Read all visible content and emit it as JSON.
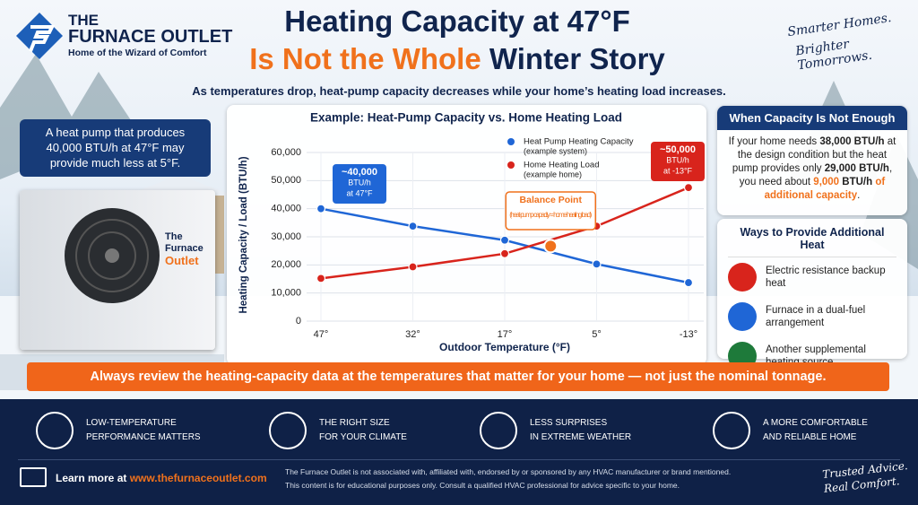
{
  "logo": {
    "line1": "THE",
    "line2": "FURNACE OUTLET",
    "tagline": "Home of the Wizard of Comfort"
  },
  "header": {
    "title_line1": "Heating Capacity at 47°F",
    "title_line2_highlight": "Is Not the Whole",
    "title_line2_rest": " Winter Story",
    "subtitle": "As temperatures drop, heat-pump capacity decreases while your home’s heating load increases."
  },
  "slogan": {
    "line1": "Smarter Homes.",
    "line2": "Brighter Tomorrows."
  },
  "left_callout": "A heat pump that produces 40,000 BTU/h at 47°F may provide much less at 5°F.",
  "unit_label": {
    "line1": "The",
    "line2": "Furnace",
    "line3": "Outlet"
  },
  "chart_data": {
    "type": "line",
    "title": "Example: Heat-Pump Capacity vs. Home Heating Load",
    "x_label": "Outdoor Temperature (°F)",
    "y_label": "Heating Capacity / Load (BTU/h)",
    "categories": [
      "47°",
      "32°",
      "17°",
      "5°",
      "-13°"
    ],
    "series": [
      {
        "name": "Heat Pump Heating Capacity",
        "note": "(example system)",
        "color": "#1f66d6",
        "values": [
          40000,
          33800,
          28800,
          20300,
          13700
        ]
      },
      {
        "name": "Home Heating Load",
        "note": "(example home)",
        "color": "#d8241c",
        "values": [
          15200,
          19300,
          24000,
          33800,
          47500
        ]
      }
    ],
    "ylim": [
      0,
      60000
    ],
    "yticks": [
      0,
      {
        "value": 10000,
        "label": "10,000"
      },
      {
        "value": 20000,
        "label": "20,000"
      },
      {
        "value": 30000,
        "label": "30,000"
      },
      {
        "value": 40000,
        "label": "40,000"
      },
      {
        "value": 50000,
        "label": "50,000"
      },
      {
        "value": 60000,
        "label": "60,000"
      }
    ],
    "grid": true,
    "balance_point": {
      "title": "Balance Point",
      "note": "(heat-pump capacity = home heating load)",
      "value": 26700
    },
    "callouts": [
      {
        "lines": [
          "~40,000",
          "BTU/h",
          "at 47°F"
        ],
        "color": "#1f66d6"
      },
      {
        "lines": [
          "~50,000",
          "BTU/h",
          "at -13°F"
        ],
        "color": "#d8241c"
      }
    ]
  },
  "capacity_panel": {
    "title": "When Capacity Is Not Enough",
    "runs": [
      "If your home needs ",
      "38,000 BTU/h",
      " at the design condition but the heat pump provides only ",
      "29,000 BTU/h",
      ", you need about ",
      "9,000",
      " BTU/h ",
      "of additional capacity",
      "."
    ]
  },
  "ways_panel": {
    "title": "Ways to Provide Additional Heat",
    "items": [
      "Electric resistance backup heat",
      "Furnace in a dual-fuel arrangement",
      "Another supplemental heating source"
    ]
  },
  "banner": "Always review the heating-capacity data at the temperatures that matter for your home — not just the nominal tonnage.",
  "features": [
    {
      "line1": "LOW-TEMPERATURE",
      "line2": "PERFORMANCE MATTERS"
    },
    {
      "line1": "THE RIGHT SIZE",
      "line2": "FOR YOUR CLIMATE"
    },
    {
      "line1": "LESS SURPRISES",
      "line2": "IN EXTREME WEATHER"
    },
    {
      "line1": "A MORE COMFORTABLE",
      "line2": "AND RELIABLE HOME"
    }
  ],
  "footer": {
    "learn_prefix": "Learn more at ",
    "url": "www.thefurnaceoutlet.com",
    "disclaimer_line1": "The Furnace Outlet is not associated with, affiliated with, endorsed by or sponsored by any HVAC manufacturer or brand mentioned.",
    "disclaimer_line2": "This content is for educational purposes only. Consult a qualified HVAC professional for advice specific to your home.",
    "signoff_line1": "Trusted Advice.",
    "signoff_line2": "Real Comfort."
  }
}
